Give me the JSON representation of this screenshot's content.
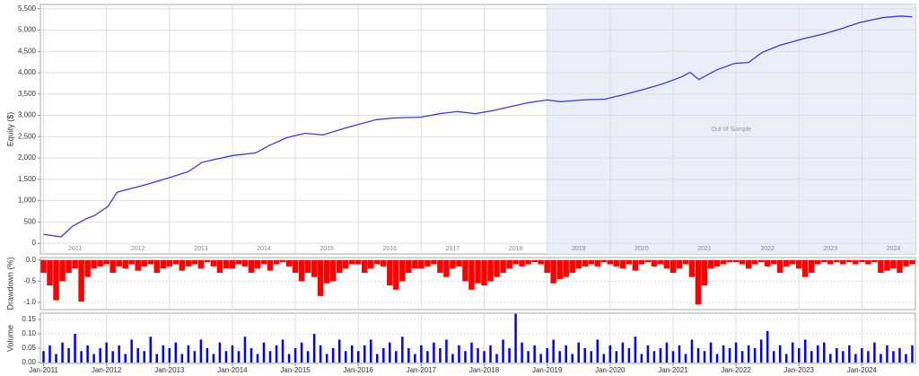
{
  "chart_data": [
    {
      "type": "line",
      "ylabel": "Equity ($)",
      "color": "#3b3bd0",
      "grid": true,
      "annotation": "Out of Sample",
      "shade_from": 2019.0,
      "shade_color": "#e9eef8",
      "xlim": [
        2010.95,
        2024.85
      ],
      "ylim": [
        -250,
        5600
      ],
      "yticks": [
        0,
        500,
        {
          "value": 1000,
          "label": "1,000"
        },
        {
          "value": 1500,
          "label": "1,500"
        },
        {
          "value": 2000,
          "label": "2,000"
        },
        {
          "value": 2500,
          "label": "2,500"
        },
        {
          "value": 3000,
          "label": "3,000"
        },
        {
          "value": 3500,
          "label": "3,500"
        },
        {
          "value": 4000,
          "label": "4,000"
        },
        {
          "value": 4500,
          "label": "4,500"
        },
        {
          "value": 5000,
          "label": "5,000"
        },
        {
          "value": 5500,
          "label": "5,500"
        }
      ],
      "xticks": [
        {
          "value": 2011.5,
          "label": "2011"
        },
        {
          "value": 2012.5,
          "label": "2012"
        },
        {
          "value": 2013.5,
          "label": "2013"
        },
        {
          "value": 2014.5,
          "label": "2014"
        },
        {
          "value": 2015.5,
          "label": "2015"
        },
        {
          "value": 2016.5,
          "label": "2016"
        },
        {
          "value": 2017.5,
          "label": "2017"
        },
        {
          "value": 2018.5,
          "label": "2018"
        },
        {
          "value": 2019.5,
          "label": "2019"
        },
        {
          "value": 2020.5,
          "label": "2020"
        },
        {
          "value": 2021.5,
          "label": "2021"
        },
        {
          "value": 2022.5,
          "label": "2022"
        },
        {
          "value": 2023.5,
          "label": "2023"
        },
        {
          "value": 2024.5,
          "label": "2024"
        }
      ],
      "x": [
        2011.0,
        2011.28,
        2011.46,
        2011.67,
        2011.81,
        2012.02,
        2012.17,
        2012.38,
        2012.66,
        2013.02,
        2013.3,
        2013.52,
        2013.73,
        2014.02,
        2014.37,
        2014.58,
        2014.87,
        2015.15,
        2015.44,
        2015.72,
        2016.01,
        2016.29,
        2016.58,
        2017.0,
        2017.29,
        2017.57,
        2017.86,
        2018.14,
        2018.43,
        2018.71,
        2019.0,
        2019.21,
        2019.56,
        2019.92,
        2020.2,
        2020.49,
        2020.84,
        2021.13,
        2021.27,
        2021.41,
        2021.7,
        2021.98,
        2022.2,
        2022.41,
        2022.69,
        2023.05,
        2023.4,
        2023.69,
        2023.97,
        2024.33,
        2024.61,
        2024.8
      ],
      "values": [
        210,
        150,
        400,
        570,
        650,
        860,
        1200,
        1280,
        1390,
        1550,
        1680,
        1900,
        1970,
        2060,
        2120,
        2290,
        2480,
        2580,
        2540,
        2670,
        2790,
        2900,
        2940,
        2960,
        3040,
        3090,
        3040,
        3110,
        3210,
        3300,
        3360,
        3320,
        3360,
        3380,
        3480,
        3590,
        3740,
        3900,
        4010,
        3840,
        4070,
        4220,
        4240,
        4470,
        4640,
        4790,
        4910,
        5040,
        5180,
        5290,
        5330,
        5310
      ]
    },
    {
      "type": "bar",
      "ylabel": "Drawdown (%)",
      "color": "#ff0000",
      "grid": true,
      "xlim": [
        2010.95,
        2024.85
      ],
      "ylim": [
        -1.17,
        0.06
      ],
      "yticks": [
        {
          "value": 0,
          "label": "0.0"
        },
        -0.5,
        {
          "value": -1,
          "label": "-1.0"
        }
      ],
      "x": [
        2011.0,
        2011.1,
        2011.2,
        2011.3,
        2011.4,
        2011.5,
        2011.6,
        2011.7,
        2011.8,
        2011.9,
        2012.0,
        2012.1,
        2012.2,
        2012.3,
        2012.4,
        2012.5,
        2012.6,
        2012.7,
        2012.8,
        2012.9,
        2013.0,
        2013.1,
        2013.2,
        2013.3,
        2013.4,
        2013.5,
        2013.6,
        2013.7,
        2013.8,
        2013.9,
        2014.0,
        2014.1,
        2014.2,
        2014.3,
        2014.4,
        2014.5,
        2014.6,
        2014.7,
        2014.8,
        2014.9,
        2015.0,
        2015.1,
        2015.2,
        2015.3,
        2015.4,
        2015.5,
        2015.6,
        2015.7,
        2015.8,
        2015.9,
        2016.0,
        2016.1,
        2016.2,
        2016.3,
        2016.4,
        2016.5,
        2016.6,
        2016.7,
        2016.8,
        2016.9,
        2017.0,
        2017.1,
        2017.2,
        2017.3,
        2017.4,
        2017.5,
        2017.6,
        2017.7,
        2017.8,
        2017.9,
        2018.0,
        2018.1,
        2018.2,
        2018.3,
        2018.4,
        2018.5,
        2018.6,
        2018.7,
        2018.8,
        2018.9,
        2019.0,
        2019.1,
        2019.2,
        2019.3,
        2019.4,
        2019.5,
        2019.6,
        2019.7,
        2019.8,
        2019.9,
        2020.0,
        2020.1,
        2020.2,
        2020.3,
        2020.4,
        2020.5,
        2020.6,
        2020.7,
        2020.8,
        2020.9,
        2021.0,
        2021.1,
        2021.2,
        2021.3,
        2021.4,
        2021.5,
        2021.6,
        2021.7,
        2021.8,
        2021.9,
        2022.0,
        2022.1,
        2022.2,
        2022.3,
        2022.4,
        2022.5,
        2022.6,
        2022.7,
        2022.8,
        2022.9,
        2023.0,
        2023.1,
        2023.2,
        2023.3,
        2023.4,
        2023.5,
        2023.6,
        2023.7,
        2023.8,
        2023.9,
        2024.0,
        2024.1,
        2024.2,
        2024.3,
        2024.4,
        2024.5,
        2024.6,
        2024.7,
        2024.8
      ],
      "values": [
        -0.3,
        -0.6,
        -0.95,
        -0.5,
        -0.3,
        -0.2,
        -0.98,
        -0.4,
        -0.2,
        -0.15,
        -0.1,
        -0.3,
        -0.15,
        -0.2,
        -0.1,
        -0.25,
        -0.15,
        -0.1,
        -0.3,
        -0.2,
        -0.15,
        -0.1,
        -0.25,
        -0.15,
        -0.1,
        -0.2,
        -0.05,
        -0.15,
        -0.3,
        -0.2,
        -0.2,
        -0.1,
        -0.15,
        -0.3,
        -0.2,
        -0.1,
        -0.25,
        -0.1,
        -0.05,
        -0.15,
        -0.3,
        -0.5,
        -0.3,
        -0.4,
        -0.85,
        -0.55,
        -0.5,
        -0.3,
        -0.2,
        -0.1,
        -0.1,
        -0.3,
        -0.2,
        -0.1,
        -0.15,
        -0.6,
        -0.7,
        -0.5,
        -0.3,
        -0.2,
        -0.2,
        -0.15,
        -0.1,
        -0.3,
        -0.4,
        -0.2,
        -0.15,
        -0.5,
        -0.7,
        -0.55,
        -0.6,
        -0.5,
        -0.4,
        -0.3,
        -0.2,
        -0.1,
        -0.15,
        -0.1,
        -0.05,
        -0.1,
        -0.3,
        -0.55,
        -0.45,
        -0.4,
        -0.3,
        -0.2,
        -0.15,
        -0.1,
        -0.15,
        -0.05,
        -0.1,
        -0.15,
        -0.2,
        -0.1,
        -0.25,
        -0.1,
        -0.05,
        -0.15,
        -0.1,
        -0.2,
        -0.3,
        -0.2,
        -0.1,
        -0.4,
        -1.05,
        -0.6,
        -0.2,
        -0.15,
        -0.1,
        -0.05,
        -0.05,
        -0.1,
        -0.2,
        -0.1,
        -0.05,
        -0.15,
        -0.1,
        -0.3,
        -0.15,
        -0.1,
        -0.2,
        -0.4,
        -0.3,
        -0.1,
        -0.05,
        -0.1,
        -0.05,
        -0.1,
        -0.05,
        -0.1,
        -0.05,
        -0.1,
        -0.05,
        -0.3,
        -0.25,
        -0.2,
        -0.3,
        -0.15,
        -0.1
      ]
    },
    {
      "type": "bar",
      "ylabel": "Volume",
      "color": "#0000ff",
      "grid": true,
      "xlim": [
        2010.95,
        2024.85
      ],
      "ylim": [
        -0.003,
        0.172
      ],
      "yticks": [
        {
          "value": 0,
          "label": "0.00"
        },
        0.05,
        {
          "value": 0.1,
          "label": "0.10"
        },
        0.15
      ],
      "xticks": [
        {
          "value": 2011,
          "label": "Jan-2011"
        },
        {
          "value": 2012,
          "label": "Jan-2012"
        },
        {
          "value": 2013,
          "label": "Jan-2013"
        },
        {
          "value": 2014,
          "label": "Jan-2014"
        },
        {
          "value": 2015,
          "label": "Jan-2015"
        },
        {
          "value": 2016,
          "label": "Jan-2016"
        },
        {
          "value": 2017,
          "label": "Jan-2017"
        },
        {
          "value": 2018,
          "label": "Jan-2018"
        },
        {
          "value": 2019,
          "label": "Jan-2019"
        },
        {
          "value": 2020,
          "label": "Jan-2020"
        },
        {
          "value": 2021,
          "label": "Jan-2021"
        },
        {
          "value": 2022,
          "label": "Jan-2022"
        },
        {
          "value": 2023,
          "label": "Jan-2023"
        },
        {
          "value": 2024,
          "label": "Jan-2024"
        }
      ],
      "x": [
        2011.0,
        2011.1,
        2011.2,
        2011.3,
        2011.4,
        2011.5,
        2011.6,
        2011.7,
        2011.8,
        2011.9,
        2012.0,
        2012.1,
        2012.2,
        2012.3,
        2012.4,
        2012.5,
        2012.6,
        2012.7,
        2012.8,
        2012.9,
        2013.0,
        2013.1,
        2013.2,
        2013.3,
        2013.4,
        2013.5,
        2013.6,
        2013.7,
        2013.8,
        2013.9,
        2014.0,
        2014.1,
        2014.2,
        2014.3,
        2014.4,
        2014.5,
        2014.6,
        2014.7,
        2014.8,
        2014.9,
        2015.0,
        2015.1,
        2015.2,
        2015.3,
        2015.4,
        2015.5,
        2015.6,
        2015.7,
        2015.8,
        2015.9,
        2016.0,
        2016.1,
        2016.2,
        2016.3,
        2016.4,
        2016.5,
        2016.6,
        2016.7,
        2016.8,
        2016.9,
        2017.0,
        2017.1,
        2017.2,
        2017.3,
        2017.4,
        2017.5,
        2017.6,
        2017.7,
        2017.8,
        2017.9,
        2018.0,
        2018.1,
        2018.2,
        2018.3,
        2018.4,
        2018.5,
        2018.6,
        2018.7,
        2018.8,
        2018.9,
        2019.0,
        2019.1,
        2019.2,
        2019.3,
        2019.4,
        2019.5,
        2019.6,
        2019.7,
        2019.8,
        2019.9,
        2020.0,
        2020.1,
        2020.2,
        2020.3,
        2020.4,
        2020.5,
        2020.6,
        2020.7,
        2020.8,
        2020.9,
        2021.0,
        2021.1,
        2021.2,
        2021.3,
        2021.4,
        2021.5,
        2021.6,
        2021.7,
        2021.8,
        2021.9,
        2022.0,
        2022.1,
        2022.2,
        2022.3,
        2022.4,
        2022.5,
        2022.6,
        2022.7,
        2022.8,
        2022.9,
        2023.0,
        2023.1,
        2023.2,
        2023.3,
        2023.4,
        2023.5,
        2023.6,
        2023.7,
        2023.8,
        2023.9,
        2024.0,
        2024.1,
        2024.2,
        2024.3,
        2024.4,
        2024.5,
        2024.6,
        2024.7,
        2024.8
      ],
      "values": [
        0.04,
        0.06,
        0.03,
        0.07,
        0.05,
        0.1,
        0.04,
        0.06,
        0.03,
        0.05,
        0.07,
        0.04,
        0.06,
        0.03,
        0.08,
        0.05,
        0.04,
        0.09,
        0.03,
        0.06,
        0.05,
        0.07,
        0.03,
        0.06,
        0.04,
        0.08,
        0.05,
        0.03,
        0.07,
        0.04,
        0.06,
        0.04,
        0.09,
        0.05,
        0.03,
        0.07,
        0.04,
        0.06,
        0.08,
        0.03,
        0.05,
        0.07,
        0.04,
        0.1,
        0.06,
        0.03,
        0.05,
        0.08,
        0.04,
        0.06,
        0.04,
        0.06,
        0.08,
        0.03,
        0.05,
        0.07,
        0.04,
        0.09,
        0.05,
        0.03,
        0.06,
        0.04,
        0.07,
        0.05,
        0.08,
        0.03,
        0.06,
        0.04,
        0.07,
        0.05,
        0.04,
        0.06,
        0.03,
        0.08,
        0.05,
        0.17,
        0.07,
        0.04,
        0.06,
        0.03,
        0.05,
        0.08,
        0.04,
        0.06,
        0.03,
        0.07,
        0.05,
        0.04,
        0.08,
        0.03,
        0.06,
        0.04,
        0.07,
        0.05,
        0.09,
        0.03,
        0.06,
        0.04,
        0.05,
        0.07,
        0.04,
        0.06,
        0.03,
        0.08,
        0.05,
        0.04,
        0.07,
        0.03,
        0.06,
        0.05,
        0.07,
        0.04,
        0.06,
        0.05,
        0.08,
        0.11,
        0.04,
        0.06,
        0.03,
        0.07,
        0.05,
        0.08,
        0.04,
        0.06,
        0.07,
        0.03,
        0.05,
        0.04,
        0.06,
        0.03,
        0.05,
        0.04,
        0.07,
        0.03,
        0.06,
        0.04,
        0.05,
        0.03,
        0.06
      ]
    }
  ]
}
